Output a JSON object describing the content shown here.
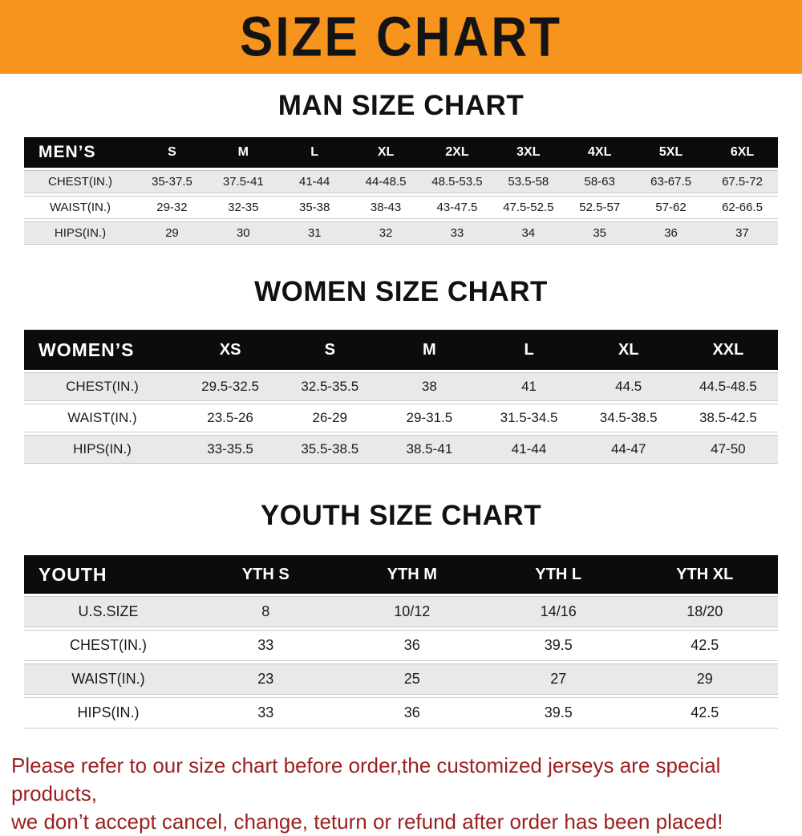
{
  "banner": {
    "title": "SIZE CHART",
    "background_color": "#F7941D",
    "text_color": "#141414"
  },
  "sections": [
    {
      "heading": "MAN SIZE CHART"
    },
    {
      "heading": "WOMEN SIZE CHART"
    },
    {
      "heading": "YOUTH SIZE CHART"
    }
  ],
  "chart_data": [
    {
      "type": "table",
      "title": "MAN SIZE CHART",
      "columns": [
        "MEN’S",
        "S",
        "M",
        "L",
        "XL",
        "2XL",
        "3XL",
        "4XL",
        "5XL",
        "6XL"
      ],
      "rows": [
        [
          "CHEST(IN.)",
          "35-37.5",
          "37.5-41",
          "41-44",
          "44-48.5",
          "48.5-53.5",
          "53.5-58",
          "58-63",
          "63-67.5",
          "67.5-72"
        ],
        [
          "WAIST(IN.)",
          "29-32",
          "32-35",
          "35-38",
          "38-43",
          "43-47.5",
          "47.5-52.5",
          "52.5-57",
          "57-62",
          "62-66.5"
        ],
        [
          "HIPS(IN.)",
          "29",
          "30",
          "31",
          "32",
          "33",
          "34",
          "35",
          "36",
          "37"
        ]
      ]
    },
    {
      "type": "table",
      "title": "WOMEN SIZE CHART",
      "columns": [
        "WOMEN’S",
        "XS",
        "S",
        "M",
        "L",
        "XL",
        "XXL"
      ],
      "rows": [
        [
          "CHEST(IN.)",
          "29.5-32.5",
          "32.5-35.5",
          "38",
          "41",
          "44.5",
          "44.5-48.5"
        ],
        [
          "WAIST(IN.)",
          "23.5-26",
          "26-29",
          "29-31.5",
          "31.5-34.5",
          "34.5-38.5",
          "38.5-42.5"
        ],
        [
          "HIPS(IN.)",
          "33-35.5",
          "35.5-38.5",
          "38.5-41",
          "41-44",
          "44-47",
          "47-50"
        ]
      ]
    },
    {
      "type": "table",
      "title": "YOUTH SIZE CHART",
      "columns": [
        "YOUTH",
        "YTH S",
        "YTH M",
        "YTH L",
        "YTH XL"
      ],
      "rows": [
        [
          "U.S.SIZE",
          "8",
          "10/12",
          "14/16",
          "18/20"
        ],
        [
          "CHEST(IN.)",
          "33",
          "36",
          "39.5",
          "42.5"
        ],
        [
          "WAIST(IN.)",
          "23",
          "25",
          "27",
          "29"
        ],
        [
          "HIPS(IN.)",
          "33",
          "36",
          "39.5",
          "42.5"
        ]
      ]
    }
  ],
  "footer": {
    "line1": "Please refer to our size chart before order,the customized jerseys are special products,",
    "line2": "we don’t accept cancel, change, teturn or refund after order has been placed!",
    "text_color": "#9C1F1F"
  }
}
